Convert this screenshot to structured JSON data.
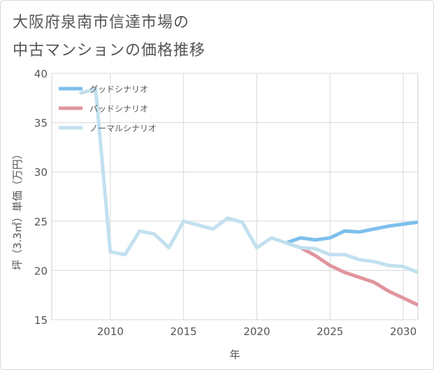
{
  "title_line1": "大阪府泉南市信達市場の",
  "title_line2": "中古マンションの価格推移",
  "chart_data": {
    "type": "line",
    "xlabel": "年",
    "ylabel": "坪（3.3㎡）単価（万円）",
    "xlim": [
      2006,
      2031
    ],
    "ylim": [
      15,
      40
    ],
    "xticks": [
      2010,
      2015,
      2020,
      2025,
      2030
    ],
    "yticks": [
      15,
      20,
      25,
      30,
      35,
      40
    ],
    "grid": true,
    "legend_position": "top-left",
    "series": [
      {
        "name": "グッドシナリオ",
        "color": "#7dbfec",
        "x": [
          2022,
          2023,
          2024,
          2025,
          2026,
          2027,
          2028,
          2029,
          2030,
          2031
        ],
        "y": [
          22.8,
          23.3,
          23.1,
          23.3,
          24.0,
          23.9,
          24.2,
          24.5,
          24.7,
          24.9
        ]
      },
      {
        "name": "バッドシナリオ",
        "color": "#e0959d",
        "x": [
          2022,
          2023,
          2024,
          2025,
          2026,
          2027,
          2028,
          2029,
          2030,
          2031
        ],
        "y": [
          22.8,
          22.3,
          21.5,
          20.5,
          19.8,
          19.3,
          18.8,
          17.9,
          17.2,
          16.5
        ]
      },
      {
        "name": "ノーマルシナリオ",
        "color": "#c2e0ef",
        "x": [
          2008,
          2009,
          2010,
          2011,
          2012,
          2013,
          2014,
          2015,
          2016,
          2017,
          2018,
          2019,
          2020,
          2021,
          2022,
          2023,
          2024,
          2025,
          2026,
          2027,
          2028,
          2029,
          2030,
          2031
        ],
        "y": [
          38.0,
          38.4,
          21.9,
          21.6,
          24.0,
          23.7,
          22.3,
          25.0,
          24.6,
          24.2,
          25.3,
          24.9,
          22.3,
          23.3,
          22.8,
          22.3,
          22.2,
          21.6,
          21.6,
          21.1,
          20.9,
          20.5,
          20.4,
          19.8
        ]
      }
    ]
  }
}
